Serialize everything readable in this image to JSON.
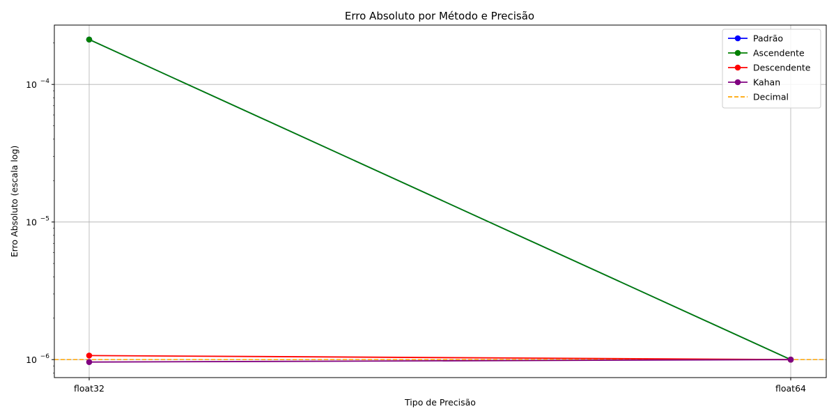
{
  "chart_data": {
    "type": "line",
    "title": "Erro Absoluto por Método e Precisão",
    "xlabel": "Tipo de Precisão",
    "ylabel": "Erro Absoluto (escala log)",
    "yscale": "log",
    "ylim": [
      7.4e-07,
      0.00027
    ],
    "categories": [
      "float32",
      "float64"
    ],
    "y_ticks": [
      {
        "value": 1e-06,
        "base": "10",
        "exp": "−6"
      },
      {
        "value": 1e-05,
        "base": "10",
        "exp": "−5"
      },
      {
        "value": 0.0001,
        "base": "10",
        "exp": "−4"
      }
    ],
    "grid": true,
    "legend_position": "top-right",
    "series": [
      {
        "name": "Padrão",
        "values": [
          0.000212,
          1e-06
        ],
        "color": "#0000ff",
        "style": "solid",
        "marker": true
      },
      {
        "name": "Ascendente",
        "values": [
          0.000212,
          1e-06
        ],
        "color": "#008000",
        "style": "solid",
        "marker": true
      },
      {
        "name": "Descendente",
        "values": [
          1.07e-06,
          1e-06
        ],
        "color": "#ff0000",
        "style": "solid",
        "marker": true
      },
      {
        "name": "Kahan",
        "values": [
          9.6e-07,
          1e-06
        ],
        "color": "#800080",
        "style": "solid",
        "marker": true
      }
    ],
    "reference_lines": [
      {
        "name": "Decimal",
        "value": 1e-06,
        "color": "#ffa500",
        "style": "dashed"
      }
    ]
  }
}
